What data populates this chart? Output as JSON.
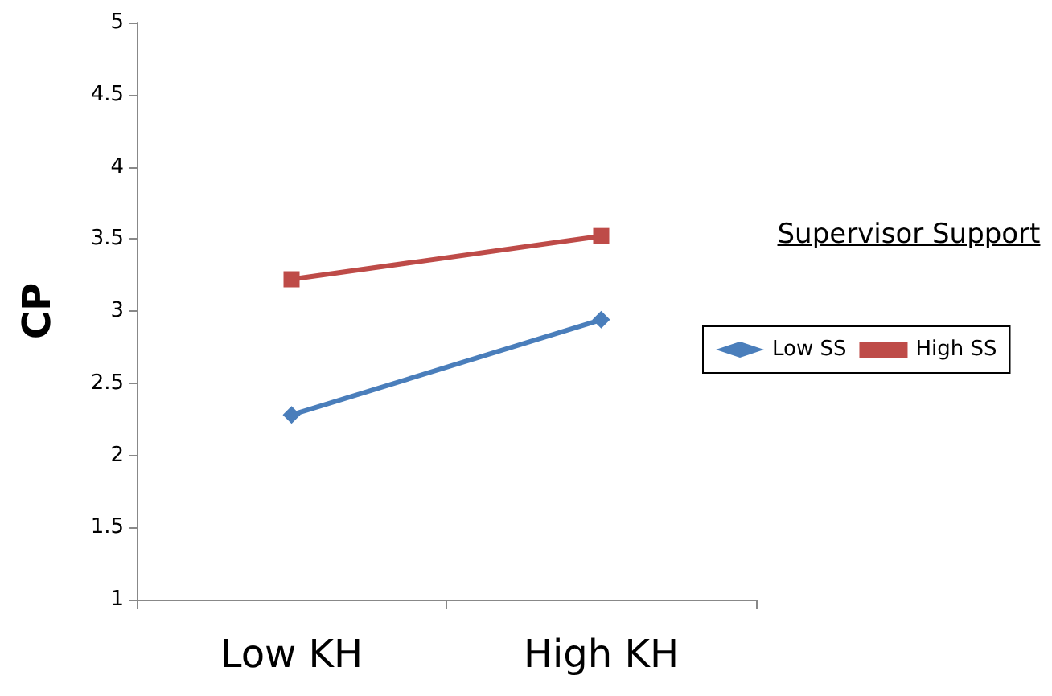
{
  "chart_data": {
    "type": "line",
    "ylabel": "CP",
    "legend_title": "Supervisor Support",
    "categories": [
      "Low KH",
      "High KH"
    ],
    "series": [
      {
        "name": "Low SS",
        "color": "#4a7ebb",
        "values": [
          2.28,
          2.94
        ],
        "marker": "diamond"
      },
      {
        "name": "High SS",
        "color": "#be4b48",
        "values": [
          3.22,
          3.52
        ],
        "marker": "square"
      }
    ],
    "ylim": [
      1,
      5
    ],
    "yticks": [
      1,
      1.5,
      2,
      2.5,
      3,
      3.5,
      4,
      4.5,
      5
    ],
    "grid": false,
    "legend": "right",
    "line_style": "solid"
  }
}
